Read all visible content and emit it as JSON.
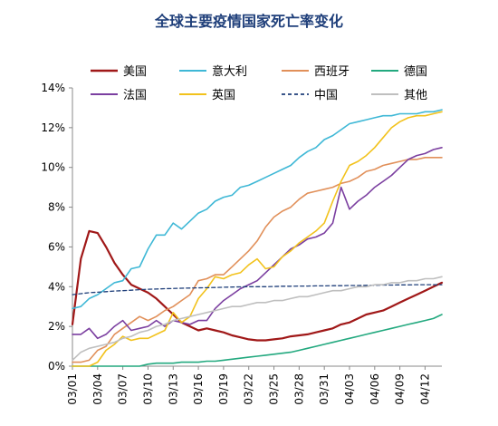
{
  "chart_data": {
    "type": "line",
    "title": "全球主要疫情国家死亡率变化",
    "xlabel": "",
    "ylabel": "",
    "x_categories": [
      "03/01",
      "03/02",
      "03/03",
      "03/04",
      "03/05",
      "03/06",
      "03/07",
      "03/08",
      "03/09",
      "03/10",
      "03/11",
      "03/12",
      "03/13",
      "03/14",
      "03/15",
      "03/16",
      "03/17",
      "03/18",
      "03/19",
      "03/20",
      "03/21",
      "03/22",
      "03/23",
      "03/24",
      "03/25",
      "03/26",
      "03/27",
      "03/28",
      "03/29",
      "03/30",
      "03/31",
      "04/01",
      "04/02",
      "04/03",
      "04/04",
      "04/05",
      "04/06",
      "04/07",
      "04/08",
      "04/09",
      "04/10",
      "04/11",
      "04/12",
      "04/13",
      "04/14"
    ],
    "x_tick_labels": [
      "03/01",
      "03/04",
      "03/07",
      "03/10",
      "03/13",
      "03/16",
      "03/19",
      "03/22",
      "03/25",
      "03/28",
      "03/31",
      "04/03",
      "04/06",
      "04/09",
      "04/12"
    ],
    "ylim": [
      0,
      14
    ],
    "y_ticks": [
      0,
      2,
      4,
      6,
      8,
      10,
      12,
      14
    ],
    "y_tick_labels": [
      "0%",
      "2%",
      "4%",
      "6%",
      "8%",
      "10%",
      "12%",
      "14%"
    ],
    "legend_position": "top",
    "series": [
      {
        "name": "美国",
        "color": "#a01818",
        "dash": "solid",
        "width": 2.2,
        "values": [
          2.1,
          5.4,
          6.8,
          6.7,
          6.0,
          5.2,
          4.6,
          4.1,
          3.9,
          3.7,
          3.4,
          3.0,
          2.6,
          2.2,
          2.0,
          1.8,
          1.9,
          1.8,
          1.7,
          1.55,
          1.45,
          1.35,
          1.3,
          1.3,
          1.35,
          1.4,
          1.5,
          1.55,
          1.6,
          1.7,
          1.8,
          1.9,
          2.1,
          2.2,
          2.4,
          2.6,
          2.7,
          2.8,
          3.0,
          3.2,
          3.4,
          3.6,
          3.8,
          4.0,
          4.2
        ]
      },
      {
        "name": "意大利",
        "color": "#3fb8d6",
        "dash": "solid",
        "width": 1.6,
        "values": [
          2.9,
          3.0,
          3.4,
          3.6,
          3.9,
          4.2,
          4.3,
          4.9,
          5.0,
          5.9,
          6.6,
          6.6,
          7.2,
          6.9,
          7.3,
          7.7,
          7.9,
          8.3,
          8.5,
          8.6,
          9.0,
          9.1,
          9.3,
          9.5,
          9.7,
          9.9,
          10.1,
          10.5,
          10.8,
          11.0,
          11.4,
          11.6,
          11.9,
          12.2,
          12.3,
          12.4,
          12.5,
          12.6,
          12.6,
          12.7,
          12.7,
          12.7,
          12.8,
          12.8,
          12.9
        ]
      },
      {
        "name": "西班牙",
        "color": "#e1905a",
        "dash": "solid",
        "width": 1.6,
        "values": [
          0.2,
          0.2,
          0.3,
          0.8,
          1.0,
          1.6,
          1.9,
          2.2,
          2.5,
          2.3,
          2.5,
          2.8,
          3.0,
          3.3,
          3.6,
          4.3,
          4.4,
          4.6,
          4.6,
          5.0,
          5.4,
          5.8,
          6.3,
          7.0,
          7.5,
          7.8,
          8.0,
          8.4,
          8.7,
          8.8,
          8.9,
          9.0,
          9.2,
          9.3,
          9.5,
          9.8,
          9.9,
          10.1,
          10.2,
          10.3,
          10.4,
          10.4,
          10.5,
          10.5,
          10.5
        ]
      },
      {
        "name": "德国",
        "color": "#23a97f",
        "dash": "solid",
        "width": 1.6,
        "values": [
          0,
          0,
          0,
          0,
          0,
          0,
          0,
          0,
          0,
          0.1,
          0.15,
          0.15,
          0.15,
          0.2,
          0.2,
          0.2,
          0.25,
          0.25,
          0.3,
          0.35,
          0.4,
          0.45,
          0.5,
          0.55,
          0.6,
          0.65,
          0.7,
          0.8,
          0.9,
          1.0,
          1.1,
          1.2,
          1.3,
          1.4,
          1.5,
          1.6,
          1.7,
          1.8,
          1.9,
          2.0,
          2.1,
          2.2,
          2.3,
          2.4,
          2.6
        ]
      },
      {
        "name": "法国",
        "color": "#7b3fa0",
        "dash": "solid",
        "width": 1.6,
        "values": [
          1.6,
          1.6,
          1.9,
          1.4,
          1.6,
          2.0,
          2.3,
          1.8,
          1.9,
          2.0,
          2.3,
          2.0,
          2.3,
          2.2,
          2.1,
          2.3,
          2.3,
          2.9,
          3.3,
          3.6,
          3.9,
          4.1,
          4.3,
          4.7,
          5.1,
          5.5,
          5.9,
          6.1,
          6.4,
          6.5,
          6.7,
          7.2,
          9.0,
          7.9,
          8.3,
          8.6,
          9.0,
          9.3,
          9.6,
          10.0,
          10.4,
          10.6,
          10.7,
          10.9,
          11.0
        ]
      },
      {
        "name": "英国",
        "color": "#f2c21c",
        "dash": "solid",
        "width": 1.6,
        "values": [
          0,
          0,
          0,
          0.2,
          0.8,
          1.1,
          1.5,
          1.3,
          1.4,
          1.4,
          1.6,
          1.8,
          2.7,
          2.2,
          2.5,
          3.4,
          3.9,
          4.5,
          4.4,
          4.6,
          4.7,
          5.1,
          5.4,
          4.9,
          5.0,
          5.5,
          5.8,
          6.2,
          6.5,
          6.8,
          7.2,
          8.3,
          9.3,
          10.1,
          10.3,
          10.6,
          11.0,
          11.5,
          12.0,
          12.3,
          12.5,
          12.6,
          12.6,
          12.7,
          12.8
        ]
      },
      {
        "name": "中国",
        "color": "#1f3f7a",
        "dash": "dashed",
        "width": 1.3,
        "values": [
          3.6,
          3.65,
          3.7,
          3.72,
          3.75,
          3.78,
          3.8,
          3.82,
          3.85,
          3.87,
          3.88,
          3.9,
          3.91,
          3.92,
          3.93,
          3.94,
          3.95,
          3.96,
          3.97,
          3.98,
          3.99,
          4.0,
          4.0,
          4.0,
          4.01,
          4.02,
          4.02,
          4.03,
          4.03,
          4.04,
          4.04,
          4.05,
          4.05,
          4.06,
          4.06,
          4.07,
          4.07,
          4.08,
          4.08,
          4.09,
          4.09,
          4.1,
          4.1,
          4.1,
          4.1
        ]
      },
      {
        "name": "其他",
        "color": "#bfbfbf",
        "dash": "solid",
        "width": 1.6,
        "values": [
          0.3,
          0.7,
          0.9,
          1.0,
          1.1,
          1.2,
          1.4,
          1.5,
          1.7,
          1.8,
          2.0,
          2.1,
          2.3,
          2.4,
          2.5,
          2.6,
          2.7,
          2.8,
          2.9,
          3.0,
          3.0,
          3.1,
          3.2,
          3.2,
          3.3,
          3.3,
          3.4,
          3.5,
          3.5,
          3.6,
          3.7,
          3.8,
          3.8,
          3.9,
          4.0,
          4.0,
          4.1,
          4.1,
          4.2,
          4.2,
          4.3,
          4.3,
          4.4,
          4.4,
          4.5
        ]
      }
    ]
  }
}
